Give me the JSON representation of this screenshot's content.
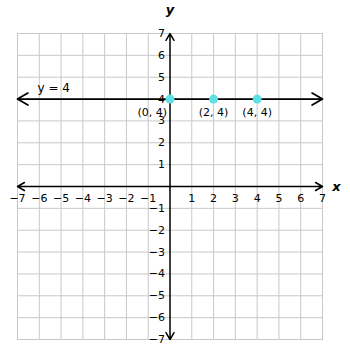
{
  "chart_data": {
    "type": "line",
    "xlabel": "x",
    "ylabel": "y",
    "xlim": [
      -7,
      7
    ],
    "ylim": [
      -7,
      7
    ],
    "xticks": [
      {
        "value": -7,
        "label": "−7"
      },
      {
        "value": -6,
        "label": "−6"
      },
      {
        "value": -5,
        "label": "−5"
      },
      {
        "value": -4,
        "label": "−4"
      },
      {
        "value": -3,
        "label": "−3"
      },
      {
        "value": -2,
        "label": "−2"
      },
      {
        "value": -1,
        "label": "−1"
      },
      1,
      2,
      3,
      4,
      5,
      6,
      7
    ],
    "yticks": [
      {
        "value": -7,
        "label": "−7"
      },
      {
        "value": -6,
        "label": "−6"
      },
      {
        "value": -5,
        "label": "−5"
      },
      {
        "value": -4,
        "label": "−4"
      },
      {
        "value": -3,
        "label": "−3"
      },
      {
        "value": -2,
        "label": "−2"
      },
      {
        "value": -1,
        "label": "−1"
      },
      1,
      2,
      3,
      4,
      5,
      6,
      7
    ],
    "grid": true,
    "series": [
      {
        "name": "y = 4",
        "color": "#000000",
        "x": [
          -7,
          7
        ],
        "values": [
          4,
          4
        ],
        "line_style": "solid"
      }
    ],
    "points": {
      "x": [
        0,
        2,
        4
      ],
      "values": [
        4,
        4,
        4
      ],
      "labels": [
        "(0, 4)",
        "(2, 4)",
        "(4, 4)"
      ],
      "color": "#5fe0e3"
    }
  }
}
